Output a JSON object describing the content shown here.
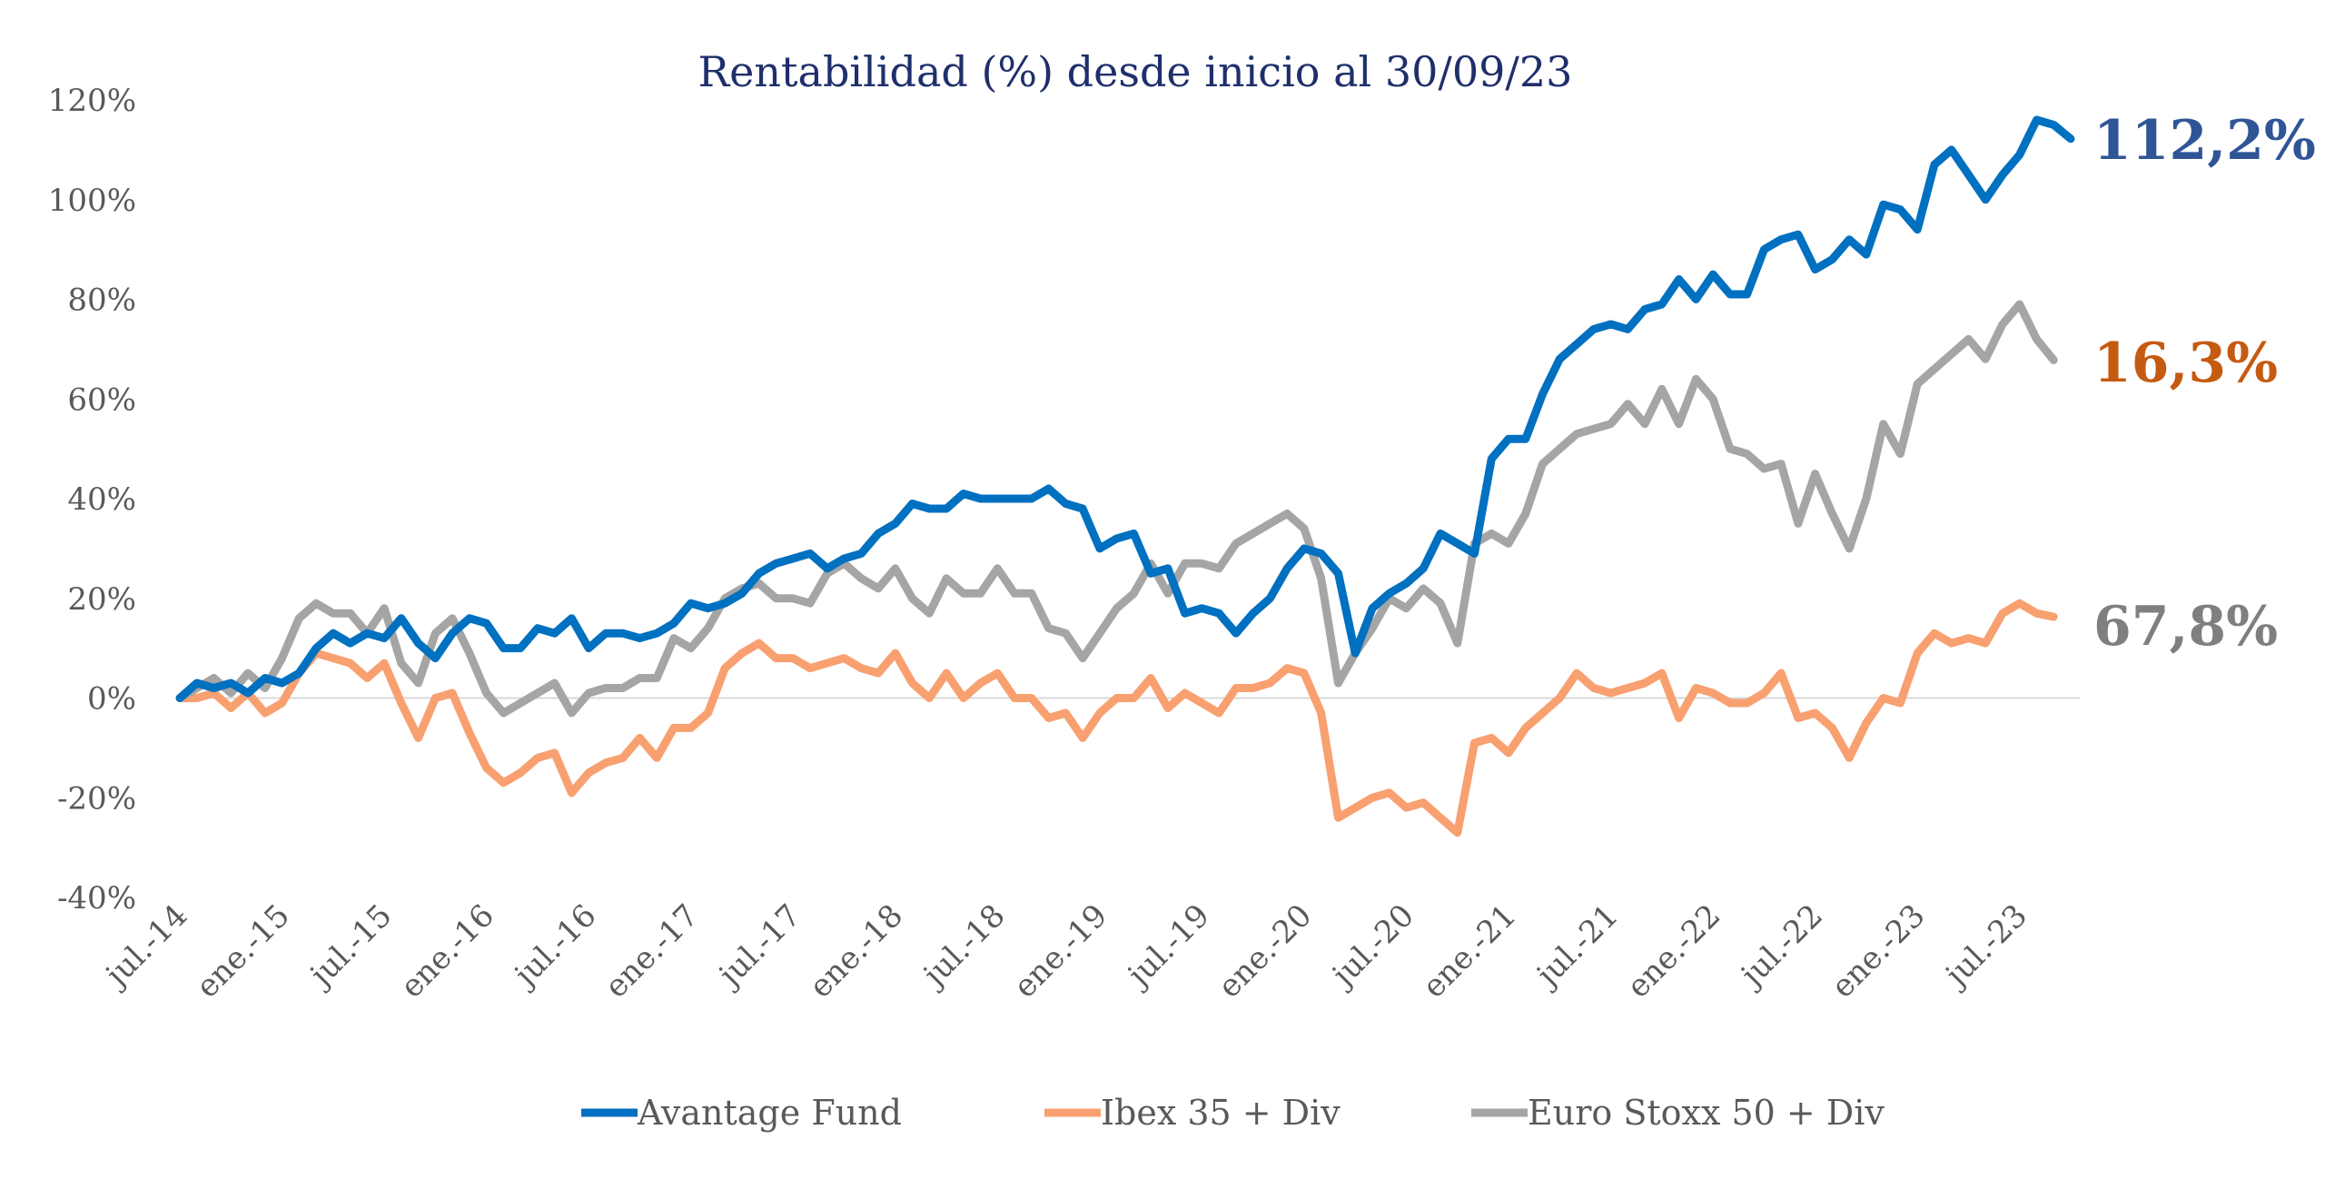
{
  "chart_data": {
    "type": "line",
    "title": "Rentabilidad (%) desde inicio al 30/09/23",
    "xlabel": "",
    "ylabel": "",
    "ylim": [
      -40,
      120
    ],
    "yticks": [
      -40,
      -20,
      0,
      20,
      40,
      60,
      80,
      100,
      120
    ],
    "ytick_labels": [
      "-40%",
      "-20%",
      "0%",
      "20%",
      "40%",
      "60%",
      "80%",
      "100%",
      "120%"
    ],
    "x_start": "jul.-14",
    "x_end": "sep.-23",
    "xtick_labels": [
      "jul.-14",
      "ene.-15",
      "jul.-15",
      "ene.-16",
      "jul.-16",
      "ene.-17",
      "jul.-17",
      "ene.-18",
      "jul.-18",
      "ene.-19",
      "jul.-19",
      "ene.-20",
      "jul.-20",
      "ene.-21",
      "jul.-21",
      "ene.-22",
      "jul.-22",
      "ene.-23",
      "jul.-23"
    ],
    "grid": false,
    "zero_line": true,
    "legend_position": "bottom",
    "series": [
      {
        "name": "Avantage Fund",
        "color": "#0070C0",
        "end_label": "112,2%",
        "end_label_color": "#2F5597",
        "values": [
          0,
          3,
          2,
          3,
          1,
          4,
          3,
          5,
          10,
          13,
          11,
          13,
          12,
          16,
          11,
          8,
          13,
          16,
          15,
          10,
          10,
          14,
          13,
          16,
          10,
          13,
          13,
          12,
          13,
          15,
          19,
          18,
          19,
          21,
          25,
          27,
          28,
          29,
          26,
          28,
          29,
          33,
          35,
          39,
          38,
          38,
          41,
          40,
          40,
          40,
          40,
          42,
          39,
          38,
          30,
          32,
          33,
          25,
          26,
          17,
          18,
          17,
          13,
          17,
          20,
          26,
          30,
          29,
          25,
          9,
          18,
          21,
          23,
          26,
          33,
          31,
          29,
          48,
          52,
          52,
          61,
          68,
          71,
          74,
          75,
          74,
          78,
          79,
          84,
          80,
          85,
          81,
          81,
          90,
          92,
          93,
          86,
          88,
          92,
          89,
          99,
          98,
          94,
          107,
          110,
          105,
          100,
          105,
          109,
          116,
          115,
          112.2
        ]
      },
      {
        "name": "Ibex 35 + Div",
        "color": "#F8A070",
        "end_label": "16,3%",
        "end_label_color": "#C55A11",
        "values": [
          0,
          0,
          1,
          -2,
          1,
          -3,
          -1,
          5,
          9,
          8,
          7,
          4,
          7,
          -1,
          -8,
          0,
          1,
          -7,
          -14,
          -17,
          -15,
          -12,
          -11,
          -19,
          -15,
          -13,
          -12,
          -8,
          -12,
          -6,
          -6,
          -3,
          6,
          9,
          11,
          8,
          8,
          6,
          7,
          8,
          6,
          5,
          9,
          3,
          0,
          5,
          0,
          3,
          5,
          0,
          0,
          -4,
          -3,
          -8,
          -3,
          0,
          0,
          4,
          -2,
          1,
          -1,
          -3,
          2,
          2,
          3,
          6,
          5,
          -3,
          -24,
          -22,
          -20,
          -19,
          -22,
          -21,
          -24,
          -27,
          -9,
          -8,
          -11,
          -6,
          -3,
          0,
          5,
          2,
          1,
          2,
          3,
          5,
          -4,
          2,
          1,
          -1,
          -1,
          1,
          5,
          -4,
          -3,
          -6,
          -12,
          -5,
          0,
          -1,
          9,
          13,
          11,
          12,
          11,
          17,
          19,
          17,
          16.3
        ]
      },
      {
        "name": "Euro Stoxx 50 + Div",
        "color": "#A5A5A5",
        "end_label": "67,8%",
        "end_label_color": "#7F7F7F",
        "values": [
          0,
          2,
          4,
          1,
          5,
          2,
          8,
          16,
          19,
          17,
          17,
          13,
          18,
          7,
          3,
          13,
          16,
          9,
          1,
          -3,
          -1,
          1,
          3,
          -3,
          1,
          2,
          2,
          4,
          4,
          12,
          10,
          14,
          20,
          22,
          23,
          20,
          20,
          19,
          25,
          27,
          24,
          22,
          26,
          20,
          17,
          24,
          21,
          21,
          26,
          21,
          21,
          14,
          13,
          8,
          13,
          18,
          21,
          27,
          21,
          27,
          27,
          26,
          31,
          33,
          35,
          37,
          34,
          24,
          3,
          9,
          14,
          20,
          18,
          22,
          19,
          11,
          31,
          33,
          31,
          37,
          47,
          50,
          53,
          54,
          55,
          59,
          55,
          62,
          55,
          64,
          60,
          50,
          49,
          46,
          47,
          35,
          45,
          37,
          30,
          40,
          55,
          49,
          63,
          66,
          69,
          72,
          68,
          75,
          79,
          72,
          67.8
        ]
      }
    ]
  }
}
